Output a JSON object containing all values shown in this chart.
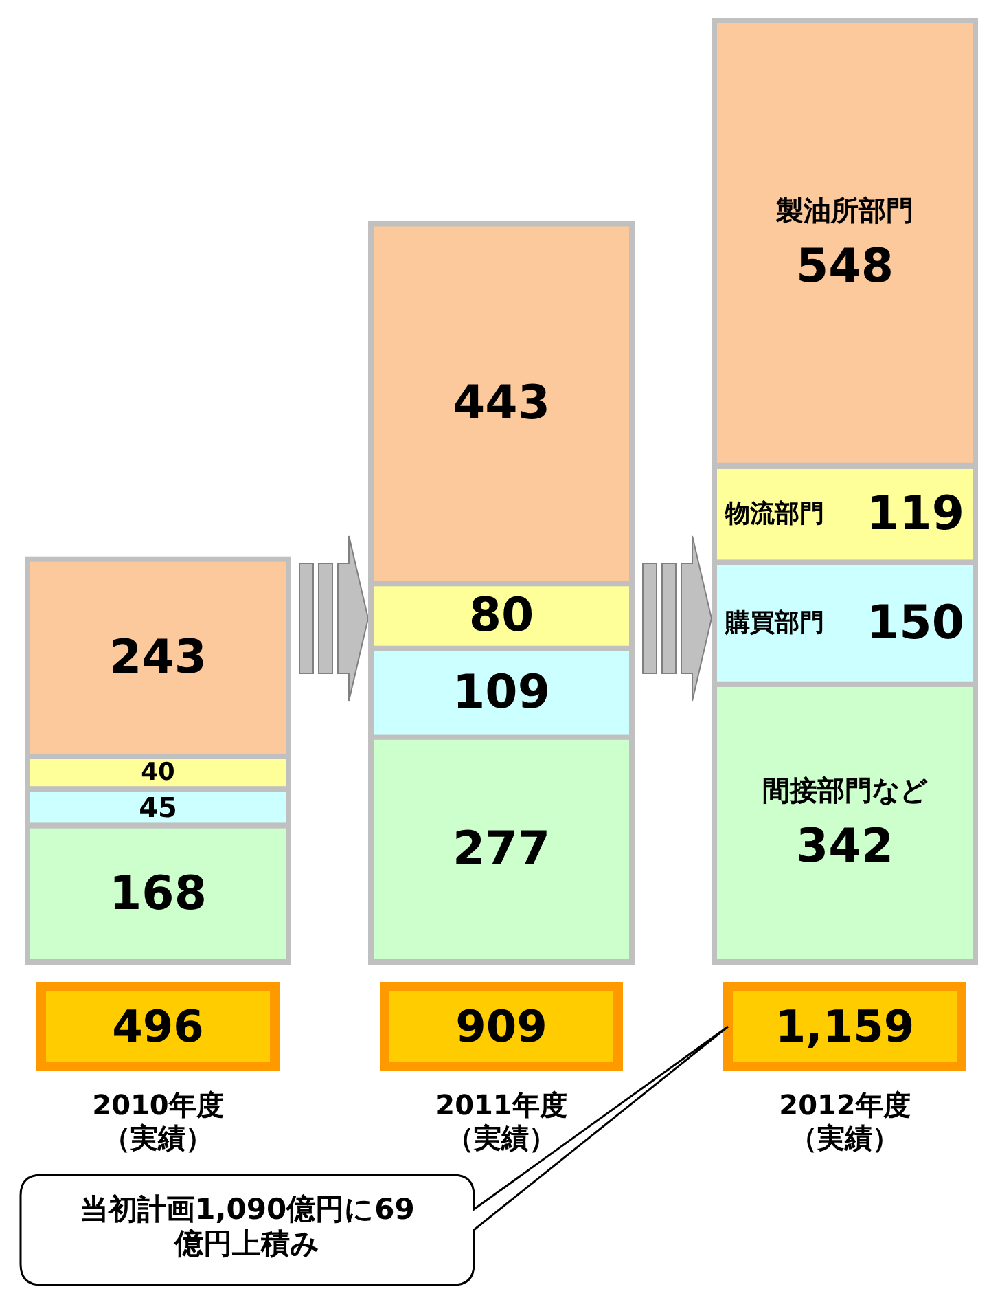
{
  "chart_data": {
    "type": "bar",
    "stacked": true,
    "data_labels": true,
    "categories": [
      "2010年度（実績）",
      "2011年度（実績）",
      "2012年度（実績）"
    ],
    "series": [
      {
        "name": "間接部門など",
        "color": "#ccffcc",
        "values": [
          168,
          277,
          342
        ]
      },
      {
        "name": "購買部門",
        "color": "#ccffff",
        "values": [
          45,
          109,
          150
        ]
      },
      {
        "name": "物流部門",
        "color": "#ffff99",
        "values": [
          40,
          80,
          119
        ]
      },
      {
        "name": "製油所部門",
        "color": "#fcc99c",
        "values": [
          243,
          443,
          548
        ]
      }
    ],
    "totals": [
      "496",
      "909",
      "1,159"
    ],
    "annotations": [
      "当初計画1,090億円に69億円上積み"
    ]
  }
}
